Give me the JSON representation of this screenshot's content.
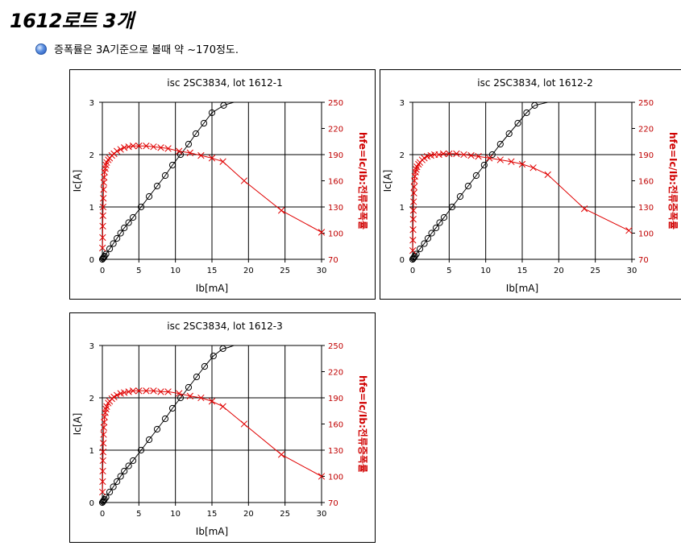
{
  "page": {
    "title": "1612로트 3개",
    "note": "증폭률은 3A기준으로 볼때 약 ~170정도."
  },
  "colors": {
    "ic_series": "#000000",
    "hfe_series": "#e00000",
    "bullet": "#3a74d6"
  },
  "chart_data": [
    {
      "type": "scatter",
      "title": "isc 2SC3834, lot 1612-1",
      "xlabel": "Ib[mA]",
      "ylabel": "Ic[A]",
      "y2label": "hfe=Ic/Ib:전류증폭률",
      "xlim": [
        0,
        30
      ],
      "ylim": [
        0,
        3
      ],
      "y2lim": [
        70,
        250
      ],
      "xticks": [
        0,
        5,
        10,
        15,
        20,
        25,
        30
      ],
      "yticks": [
        0,
        1,
        2,
        3
      ],
      "y2ticks": [
        70,
        100,
        130,
        160,
        190,
        220,
        250
      ],
      "grid": true,
      "series": [
        {
          "axis": "left",
          "marker": "circle",
          "color": "#000000",
          "x": [
            0,
            0.1,
            0.2,
            0.3,
            0.5,
            1,
            1.5,
            2,
            2.5,
            3,
            3.6,
            4.2,
            5.3,
            6.4,
            7.5,
            8.6,
            9.6,
            10.7,
            11.8,
            12.8,
            13.9,
            15,
            16.6,
            17,
            18,
            19,
            20,
            25,
            30
          ],
          "y": [
            0,
            0.02,
            0.04,
            0.06,
            0.1,
            0.2,
            0.3,
            0.4,
            0.5,
            0.6,
            0.7,
            0.8,
            1.0,
            1.2,
            1.4,
            1.6,
            1.8,
            2.0,
            2.2,
            2.4,
            2.6,
            2.8,
            2.94,
            2.96,
            3.0,
            3.0,
            3.0,
            3.0,
            3.0
          ],
          "markers": [
            0,
            1,
            2,
            3,
            4,
            5,
            6,
            7,
            8,
            9,
            10,
            11,
            12,
            13,
            14,
            15,
            16,
            17,
            18,
            19,
            20,
            21,
            22
          ]
        },
        {
          "axis": "right",
          "marker": "x",
          "color": "#e00000",
          "x": [
            0.02,
            0.04,
            0.06,
            0.08,
            0.1,
            0.13,
            0.17,
            0.2,
            0.25,
            0.3,
            0.4,
            0.5,
            0.6,
            0.8,
            1,
            1.3,
            1.6,
            2,
            2.5,
            3,
            3.6,
            4.2,
            5,
            6,
            7,
            8,
            9,
            10.5,
            12,
            13.5,
            15,
            16.5,
            19.4,
            24.5,
            30
          ],
          "y": [
            83,
            95,
            108,
            120,
            130,
            140,
            150,
            158,
            164,
            170,
            174,
            178,
            181,
            184,
            186,
            189,
            191,
            194,
            196,
            198,
            199,
            200,
            200,
            200,
            199,
            198,
            197,
            194,
            192,
            189,
            186,
            182,
            160,
            126,
            101
          ]
        }
      ]
    },
    {
      "type": "scatter",
      "title": "isc 2SC3834, lot 1612-2",
      "xlabel": "Ib[mA]",
      "ylabel": "Ic[A]",
      "y2label": "hfe=Ic/Ib:전류증폭률",
      "xlim": [
        0,
        30
      ],
      "ylim": [
        0,
        3
      ],
      "y2lim": [
        70,
        250
      ],
      "xticks": [
        0,
        5,
        10,
        15,
        20,
        25,
        30
      ],
      "yticks": [
        0,
        1,
        2,
        3
      ],
      "y2ticks": [
        70,
        100,
        130,
        160,
        190,
        220,
        250
      ],
      "grid": true,
      "series": [
        {
          "axis": "left",
          "marker": "circle",
          "color": "#000000",
          "x": [
            0,
            0.1,
            0.2,
            0.3,
            0.5,
            1,
            1.6,
            2.1,
            2.6,
            3.2,
            3.7,
            4.3,
            5.4,
            6.5,
            7.6,
            8.7,
            9.8,
            10.9,
            12,
            13.2,
            14.4,
            15.6,
            16.7,
            18.5,
            20,
            25,
            30
          ],
          "y": [
            0,
            0.02,
            0.04,
            0.06,
            0.1,
            0.2,
            0.3,
            0.4,
            0.5,
            0.6,
            0.7,
            0.8,
            1.0,
            1.2,
            1.4,
            1.6,
            1.8,
            2.0,
            2.2,
            2.4,
            2.6,
            2.8,
            2.94,
            3.0,
            3.0,
            3.0,
            3.0
          ],
          "markers": [
            0,
            1,
            2,
            3,
            4,
            5,
            6,
            7,
            8,
            9,
            10,
            11,
            12,
            13,
            14,
            15,
            16,
            17,
            18,
            19,
            20,
            21,
            22
          ]
        },
        {
          "axis": "right",
          "marker": "x",
          "color": "#e00000",
          "x": [
            0.02,
            0.04,
            0.06,
            0.08,
            0.1,
            0.13,
            0.17,
            0.2,
            0.25,
            0.3,
            0.4,
            0.5,
            0.6,
            0.8,
            1,
            1.3,
            1.6,
            2,
            2.5,
            3,
            3.6,
            4.2,
            5,
            6,
            7,
            8,
            9,
            10.5,
            12,
            13.5,
            15,
            16.5,
            18.5,
            23.5,
            29.6
          ],
          "y": [
            80,
            92,
            104,
            116,
            126,
            136,
            146,
            153,
            160,
            165,
            170,
            173,
            176,
            179,
            181,
            184,
            186,
            188,
            189,
            190,
            190,
            191,
            191,
            191,
            190,
            189,
            188,
            186,
            184,
            182,
            179,
            175,
            167,
            128,
            103
          ]
        }
      ]
    },
    {
      "type": "scatter",
      "title": "isc 2SC3834, lot 1612-3",
      "xlabel": "Ib[mA]",
      "ylabel": "Ic[A]",
      "y2label": "hfe=Ic/Ib:전류증폭률",
      "xlim": [
        0,
        30
      ],
      "ylim": [
        0,
        3
      ],
      "y2lim": [
        70,
        250
      ],
      "xticks": [
        0,
        5,
        10,
        15,
        20,
        25,
        30
      ],
      "yticks": [
        0,
        1,
        2,
        3
      ],
      "y2ticks": [
        70,
        100,
        130,
        160,
        190,
        220,
        250
      ],
      "grid": true,
      "series": [
        {
          "axis": "left",
          "marker": "circle",
          "color": "#000000",
          "x": [
            0,
            0.1,
            0.2,
            0.3,
            0.5,
            1,
            1.5,
            2,
            2.5,
            3,
            3.6,
            4.2,
            5.3,
            6.4,
            7.5,
            8.6,
            9.6,
            10.7,
            11.8,
            12.9,
            14,
            15.2,
            16.5,
            17.2,
            18,
            19,
            20,
            25,
            30
          ],
          "y": [
            0,
            0.02,
            0.04,
            0.06,
            0.1,
            0.2,
            0.3,
            0.4,
            0.5,
            0.6,
            0.7,
            0.8,
            1.0,
            1.2,
            1.4,
            1.6,
            1.8,
            2.0,
            2.2,
            2.4,
            2.6,
            2.8,
            2.94,
            2.96,
            3.0,
            3.0,
            3.0,
            3.0,
            3.0
          ],
          "markers": [
            0,
            1,
            2,
            3,
            4,
            5,
            6,
            7,
            8,
            9,
            10,
            11,
            12,
            13,
            14,
            15,
            16,
            17,
            18,
            19,
            20,
            21,
            22
          ]
        },
        {
          "axis": "right",
          "marker": "x",
          "color": "#e00000",
          "x": [
            0.02,
            0.04,
            0.06,
            0.08,
            0.1,
            0.13,
            0.17,
            0.2,
            0.25,
            0.3,
            0.4,
            0.5,
            0.6,
            0.8,
            1,
            1.3,
            1.6,
            2,
            2.5,
            3,
            3.6,
            4.2,
            5,
            6,
            7,
            8,
            9,
            10.5,
            12,
            13.5,
            15,
            16.5,
            19.4,
            24.5,
            30
          ],
          "y": [
            82,
            94,
            106,
            118,
            128,
            138,
            148,
            156,
            162,
            168,
            173,
            177,
            180,
            184,
            186,
            189,
            191,
            193,
            195,
            196,
            197,
            198,
            198,
            198,
            198,
            197,
            197,
            195,
            192,
            190,
            186,
            180,
            160,
            125,
            100
          ]
        }
      ]
    }
  ]
}
